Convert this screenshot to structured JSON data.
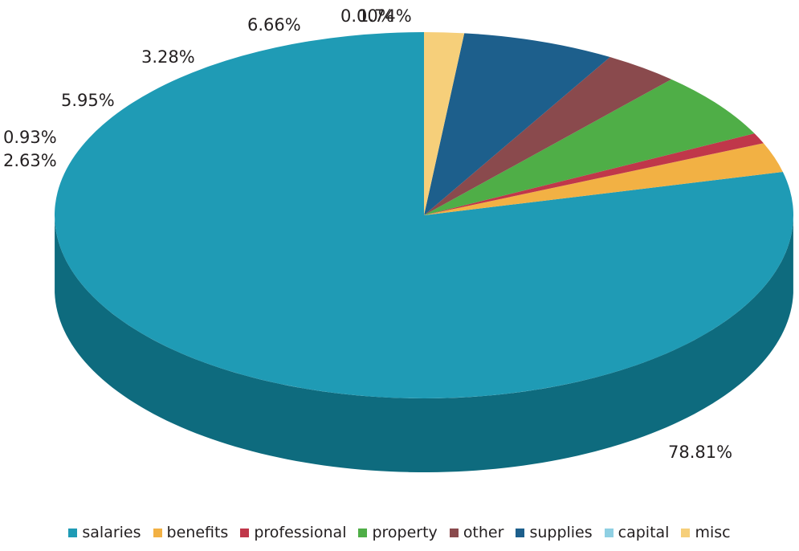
{
  "chart_data": {
    "type": "pie",
    "title": "",
    "style": "3d",
    "legend_position": "bottom",
    "slices": [
      {
        "name": "salaries",
        "value": 78.81,
        "label": "78.81%",
        "color": "#1f9bb5",
        "side_color": "#0e6b7e"
      },
      {
        "name": "benefits",
        "value": 2.63,
        "label": "2.63%",
        "color": "#f2b144",
        "side_color": "#b9822c"
      },
      {
        "name": "professional",
        "value": 0.93,
        "label": "0.93%",
        "color": "#c0374a",
        "side_color": "#8a2232"
      },
      {
        "name": "property",
        "value": 5.95,
        "label": "5.95%",
        "color": "#4fae47",
        "side_color": "#357a30"
      },
      {
        "name": "other",
        "value": 3.28,
        "label": "3.28%",
        "color": "#8a4a4d",
        "side_color": "#5e2f31"
      },
      {
        "name": "supplies",
        "value": 6.66,
        "label": "6.66%",
        "color": "#1d5f8c",
        "side_color": "#134163"
      },
      {
        "name": "capital",
        "value": 0.0,
        "label": "0.00%",
        "color": "#8fd0e3",
        "side_color": "#6aa8ba"
      },
      {
        "name": "misc",
        "value": 1.74,
        "label": "1.74%",
        "color": "#f6cf7a",
        "side_color": "#c9a45a"
      }
    ]
  }
}
